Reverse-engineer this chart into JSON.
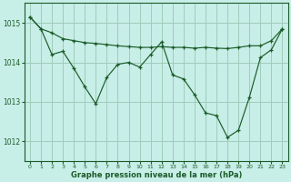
{
  "background_color": "#c8eee8",
  "plot_bg_color": "#c8eee8",
  "grid_color": "#a0ccbb",
  "line_color": "#1a5c28",
  "marker_color": "#1a5c28",
  "xlabel": "Graphe pression niveau de la mer (hPa)",
  "xlim": [
    -0.5,
    23.5
  ],
  "ylim": [
    1011.5,
    1015.5
  ],
  "yticks": [
    1012,
    1013,
    1014,
    1015
  ],
  "xticks": [
    0,
    1,
    2,
    3,
    4,
    5,
    6,
    7,
    8,
    9,
    10,
    11,
    12,
    13,
    14,
    15,
    16,
    17,
    18,
    19,
    20,
    21,
    22,
    23
  ],
  "series1_x": [
    0,
    1,
    2,
    3,
    4,
    5,
    6,
    7,
    8,
    9,
    10,
    11,
    12,
    13,
    14,
    15,
    16,
    17,
    18,
    19,
    20,
    21,
    22,
    23
  ],
  "series1_y": [
    1015.15,
    1014.85,
    1014.75,
    1014.6,
    1014.55,
    1014.5,
    1014.48,
    1014.45,
    1014.42,
    1014.4,
    1014.38,
    1014.38,
    1014.4,
    1014.38,
    1014.38,
    1014.36,
    1014.38,
    1014.36,
    1014.35,
    1014.38,
    1014.42,
    1014.42,
    1014.55,
    1014.85
  ],
  "series2_x": [
    0,
    1,
    2,
    3,
    4,
    5,
    6,
    7,
    8,
    9,
    10,
    11,
    12,
    13,
    14,
    15,
    16,
    17,
    18,
    19,
    20,
    21,
    22,
    23
  ],
  "series2_y": [
    1015.15,
    1014.85,
    1014.2,
    1014.28,
    1013.85,
    1013.38,
    1012.95,
    1013.62,
    1013.95,
    1014.0,
    1013.88,
    1014.2,
    1014.52,
    1013.68,
    1013.58,
    1013.18,
    1012.72,
    1012.65,
    1012.1,
    1012.28,
    1013.12,
    1014.12,
    1014.32,
    1014.85
  ],
  "series3_x": [
    2,
    3,
    4,
    5,
    6,
    7,
    8,
    9,
    10,
    11,
    12,
    13,
    14,
    15,
    16,
    17,
    18,
    19,
    20,
    21,
    22,
    23
  ],
  "series3_y": [
    1014.2,
    1014.28,
    1013.85,
    1013.38,
    1012.95,
    1013.62,
    1013.95,
    1014.0,
    1013.88,
    1014.2,
    1014.52,
    1013.68,
    1013.58,
    1013.18,
    1012.72,
    1012.65,
    1012.1,
    1012.28,
    1013.12,
    1014.12,
    1014.32,
    1014.85
  ]
}
